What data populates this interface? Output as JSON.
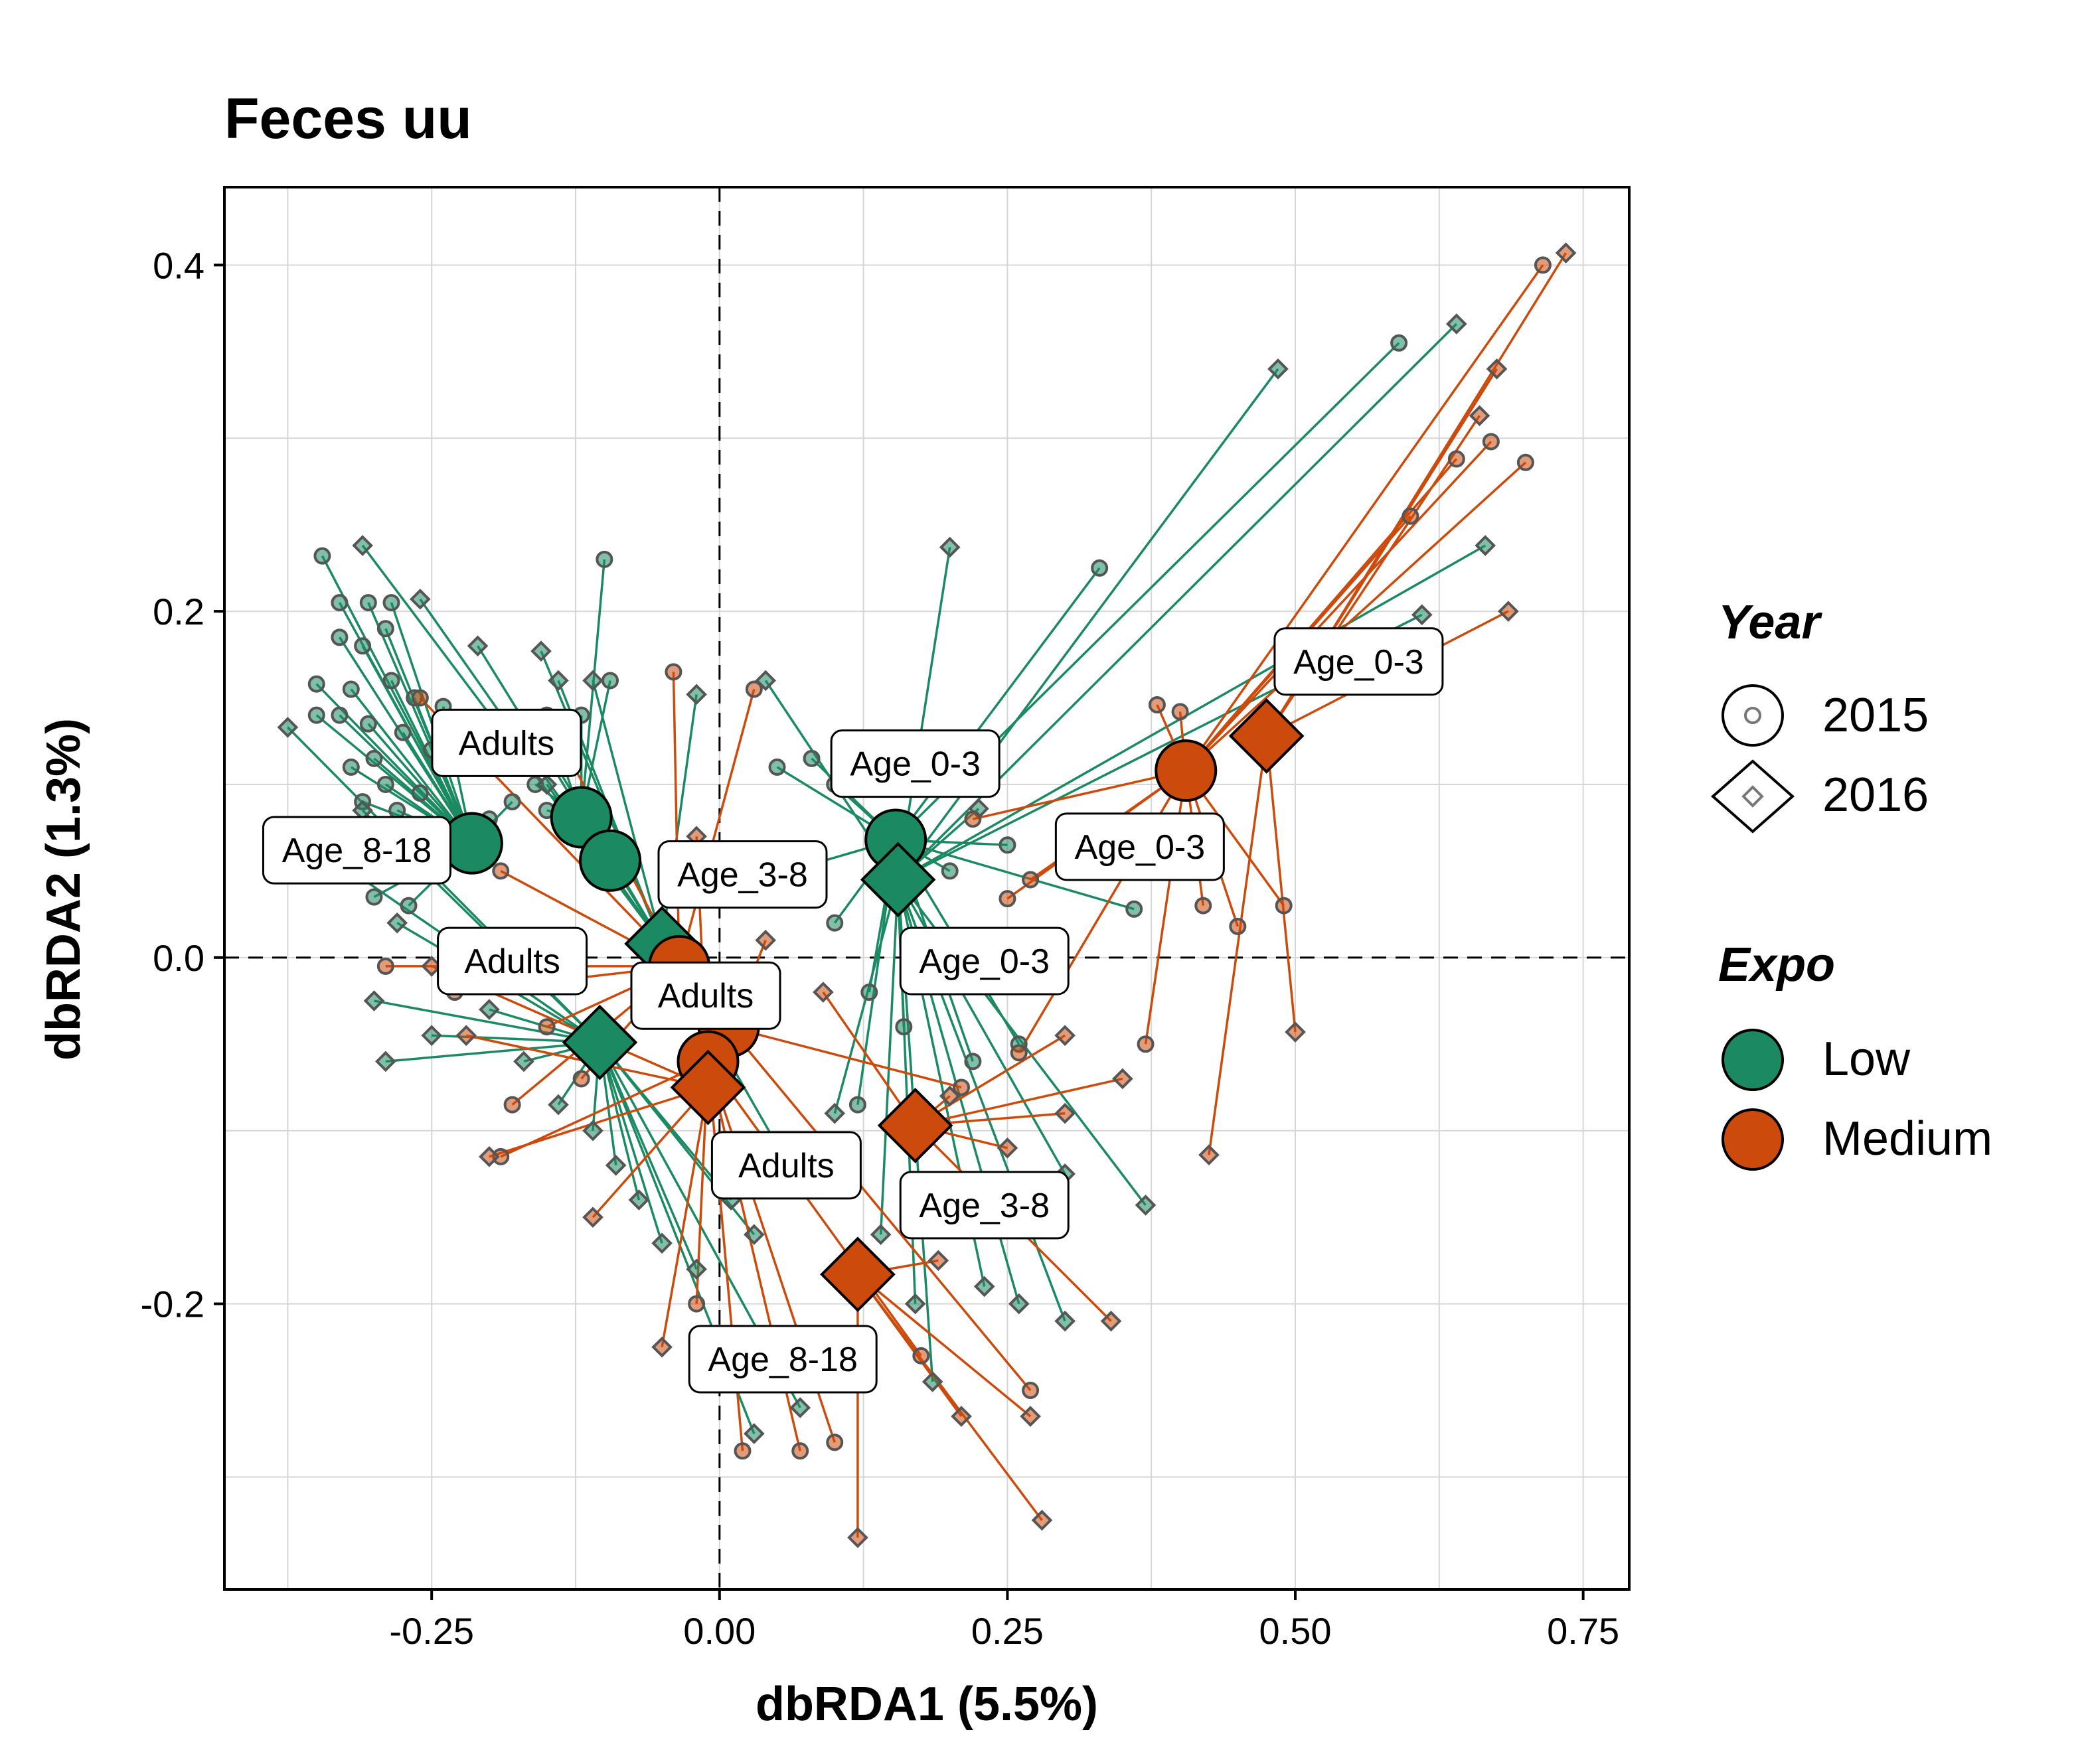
{
  "chart_data": {
    "type": "scatter",
    "title": "Feces uu",
    "xlabel": "dbRDA1 (5.5%)",
    "ylabel": "dbRDA2 (1.3%)",
    "xlim": [
      -0.43,
      0.79
    ],
    "ylim": [
      -0.365,
      0.445
    ],
    "x_ticks": [
      -0.25,
      0.0,
      0.25,
      0.5,
      0.75
    ],
    "x_tick_labels": [
      "-0.25",
      "0.00",
      "0.25",
      "0.50",
      "0.75"
    ],
    "y_ticks": [
      -0.2,
      0.0,
      0.2,
      0.4
    ],
    "y_tick_labels": [
      "-0.2",
      "0.0",
      "0.2",
      "0.4"
    ],
    "grid": true,
    "reference_lines": {
      "x": 0,
      "y": 0
    },
    "colors": {
      "Low": "#1b8a63",
      "Medium": "#cc4b0c"
    },
    "legend": {
      "placement": "right",
      "year_title": "Year",
      "year_items": [
        {
          "label": "2015",
          "shape": "circle"
        },
        {
          "label": "2016",
          "shape": "diamond"
        }
      ],
      "expo_title": "Expo",
      "expo_items": [
        {
          "label": "Low"
        },
        {
          "label": "Medium"
        }
      ]
    },
    "centroids": [
      {
        "group": "Age_8-18",
        "year": "2015",
        "expo": "Low",
        "x": -0.215,
        "y": 0.066
      },
      {
        "group": "Adults",
        "year": "2015",
        "expo": "Low",
        "x": -0.12,
        "y": 0.081
      },
      {
        "group": "Adults",
        "year": "2015",
        "expo": "Low",
        "x": -0.095,
        "y": 0.056
      },
      {
        "group": "Age_0-3",
        "year": "2015",
        "expo": "Low",
        "x": 0.153,
        "y": 0.068
      },
      {
        "group": "Age_0-3",
        "year": "2016",
        "expo": "Low",
        "x": 0.155,
        "y": 0.045
      },
      {
        "group": "Age_3-8",
        "year": "2016",
        "expo": "Low",
        "x": -0.05,
        "y": 0.008
      },
      {
        "group": "Adults",
        "year": "2016",
        "expo": "Low",
        "x": -0.104,
        "y": -0.049
      },
      {
        "group": "Age_0-3",
        "year": "2015",
        "expo": "Medium",
        "x": 0.405,
        "y": 0.108
      },
      {
        "group": "Age_0-3",
        "year": "2016",
        "expo": "Medium",
        "x": 0.475,
        "y": 0.128
      },
      {
        "group": "Age_3-8",
        "year": "2015",
        "expo": "Medium",
        "x": -0.035,
        "y": -0.005
      },
      {
        "group": "Adults",
        "year": "2015",
        "expo": "Medium",
        "x": 0.008,
        "y": -0.04
      },
      {
        "group": "Adults",
        "year": "2015",
        "expo": "Medium",
        "x": -0.01,
        "y": -0.06
      },
      {
        "group": "Adults",
        "year": "2016",
        "expo": "Medium",
        "x": -0.01,
        "y": -0.075
      },
      {
        "group": "Age_3-8",
        "year": "2016",
        "expo": "Medium",
        "x": 0.17,
        "y": -0.097
      },
      {
        "group": "Age_8-18",
        "year": "2016",
        "expo": "Medium",
        "x": 0.12,
        "y": -0.183
      }
    ],
    "labels": [
      {
        "text": "Adults",
        "x": -0.185,
        "y": 0.124
      },
      {
        "text": "Age_8-18",
        "x": -0.315,
        "y": 0.062
      },
      {
        "text": "Age_0-3",
        "x": 0.17,
        "y": 0.112
      },
      {
        "text": "Age_3-8",
        "x": 0.02,
        "y": 0.048
      },
      {
        "text": "Age_0-3",
        "x": 0.555,
        "y": 0.171
      },
      {
        "text": "Age_0-3",
        "x": 0.365,
        "y": 0.064
      },
      {
        "text": "Adults",
        "x": -0.18,
        "y": -0.002
      },
      {
        "text": "Age_0-3",
        "x": 0.23,
        "y": -0.002
      },
      {
        "text": "Adults",
        "x": -0.012,
        "y": -0.022
      },
      {
        "text": "Adults",
        "x": 0.058,
        "y": -0.12
      },
      {
        "text": "Age_3-8",
        "x": 0.23,
        "y": -0.143
      },
      {
        "text": "Age_8-18",
        "x": 0.055,
        "y": -0.232
      }
    ],
    "samples": {
      "Low": [
        {
          "x": -0.345,
          "y": 0.232,
          "c": 1
        },
        {
          "x": -0.33,
          "y": 0.205,
          "c": 1
        },
        {
          "x": -0.305,
          "y": 0.205,
          "c": 1
        },
        {
          "x": -0.285,
          "y": 0.205,
          "c": 1
        },
        {
          "x": -0.33,
          "y": 0.185,
          "c": 1
        },
        {
          "x": -0.31,
          "y": 0.18,
          "c": 1
        },
        {
          "x": -0.29,
          "y": 0.19,
          "c": 1
        },
        {
          "x": -0.35,
          "y": 0.158,
          "c": 1
        },
        {
          "x": -0.32,
          "y": 0.155,
          "c": 1
        },
        {
          "x": -0.285,
          "y": 0.16,
          "c": 1
        },
        {
          "x": -0.265,
          "y": 0.15,
          "c": 1
        },
        {
          "x": -0.24,
          "y": 0.145,
          "c": 1
        },
        {
          "x": -0.35,
          "y": 0.14,
          "c": 1
        },
        {
          "x": -0.33,
          "y": 0.14,
          "c": 1
        },
        {
          "x": -0.305,
          "y": 0.135,
          "c": 1
        },
        {
          "x": -0.275,
          "y": 0.13,
          "c": 1
        },
        {
          "x": -0.25,
          "y": 0.12,
          "c": 1
        },
        {
          "x": -0.3,
          "y": 0.115,
          "c": 1
        },
        {
          "x": -0.32,
          "y": 0.11,
          "c": 1
        },
        {
          "x": -0.29,
          "y": 0.1,
          "c": 1
        },
        {
          "x": -0.26,
          "y": 0.095,
          "c": 1
        },
        {
          "x": -0.31,
          "y": 0.09,
          "c": 1
        },
        {
          "x": -0.28,
          "y": 0.085,
          "c": 1
        },
        {
          "x": -0.3,
          "y": 0.075,
          "c": 1
        },
        {
          "x": -0.27,
          "y": 0.07,
          "c": 1
        },
        {
          "x": -0.29,
          "y": 0.055,
          "c": 1
        },
        {
          "x": -0.25,
          "y": 0.05,
          "c": 1
        },
        {
          "x": -0.3,
          "y": 0.035,
          "c": 1
        },
        {
          "x": -0.27,
          "y": 0.03,
          "c": 1
        },
        {
          "x": -0.1,
          "y": 0.23,
          "c": 1
        },
        {
          "x": -0.095,
          "y": 0.16,
          "c": 1
        },
        {
          "x": -0.12,
          "y": 0.14,
          "c": 1
        },
        {
          "x": -0.14,
          "y": 0.12,
          "c": 1
        },
        {
          "x": -0.16,
          "y": 0.1,
          "c": 1
        },
        {
          "x": -0.18,
          "y": 0.09,
          "c": 1
        },
        {
          "x": -0.2,
          "y": 0.08,
          "c": 1
        },
        {
          "x": -0.15,
          "y": 0.085,
          "c": 1
        },
        {
          "x": 0.59,
          "y": 0.355,
          "c": 1
        },
        {
          "x": 0.33,
          "y": 0.225,
          "c": 1
        },
        {
          "x": 0.08,
          "y": 0.115,
          "c": 1
        },
        {
          "x": 0.05,
          "y": 0.11,
          "c": 1
        },
        {
          "x": 0.1,
          "y": 0.1,
          "c": 1
        },
        {
          "x": 0.06,
          "y": 0.05,
          "c": 1
        },
        {
          "x": 0.2,
          "y": 0.05,
          "c": 1
        },
        {
          "x": 0.25,
          "y": 0.065,
          "c": 1
        },
        {
          "x": 0.1,
          "y": 0.02,
          "c": 1
        },
        {
          "x": 0.13,
          "y": -0.02,
          "c": 1
        },
        {
          "x": 0.16,
          "y": -0.04,
          "c": 1
        },
        {
          "x": 0.36,
          "y": 0.028,
          "c": 1
        },
        {
          "x": 0.22,
          "y": -0.06,
          "c": 1
        },
        {
          "x": 0.12,
          "y": -0.085,
          "c": 1
        },
        {
          "x": 0.26,
          "y": -0.05,
          "c": 1
        }
      ],
      "Low2016": [
        {
          "x": -0.31,
          "y": 0.238,
          "c": 0
        },
        {
          "x": -0.26,
          "y": 0.207,
          "c": 0
        },
        {
          "x": -0.375,
          "y": 0.133,
          "c": 0
        },
        {
          "x": -0.21,
          "y": 0.18,
          "c": 0
        },
        {
          "x": -0.155,
          "y": 0.177,
          "c": 0
        },
        {
          "x": -0.31,
          "y": 0.085,
          "c": 0
        },
        {
          "x": -0.32,
          "y": 0.05,
          "c": 0
        },
        {
          "x": -0.28,
          "y": 0.02,
          "c": 0
        },
        {
          "x": -0.3,
          "y": -0.025,
          "c": 0
        },
        {
          "x": -0.29,
          "y": -0.06,
          "c": 0
        },
        {
          "x": -0.25,
          "y": -0.045,
          "c": 0
        },
        {
          "x": -0.2,
          "y": -0.03,
          "c": 0
        },
        {
          "x": -0.17,
          "y": -0.06,
          "c": 0
        },
        {
          "x": -0.14,
          "y": -0.085,
          "c": 0
        },
        {
          "x": -0.11,
          "y": -0.1,
          "c": 0
        },
        {
          "x": -0.09,
          "y": -0.12,
          "c": 0
        },
        {
          "x": -0.07,
          "y": -0.14,
          "c": 0
        },
        {
          "x": -0.05,
          "y": -0.165,
          "c": 0
        },
        {
          "x": -0.02,
          "y": -0.18,
          "c": 0
        },
        {
          "x": 0.01,
          "y": -0.14,
          "c": 0
        },
        {
          "x": 0.03,
          "y": -0.16,
          "c": 0
        },
        {
          "x": 0.06,
          "y": -0.12,
          "c": 0
        },
        {
          "x": 0.1,
          "y": -0.09,
          "c": 0
        },
        {
          "x": 0.14,
          "y": -0.16,
          "c": 0
        },
        {
          "x": 0.17,
          "y": -0.2,
          "c": 0
        },
        {
          "x": 0.185,
          "y": -0.245,
          "c": 0
        },
        {
          "x": 0.23,
          "y": -0.19,
          "c": 0
        },
        {
          "x": 0.26,
          "y": -0.2,
          "c": 0
        },
        {
          "x": 0.3,
          "y": -0.21,
          "c": 0
        },
        {
          "x": 0.37,
          "y": -0.143,
          "c": 0
        },
        {
          "x": 0.3,
          "y": -0.125,
          "c": 0
        },
        {
          "x": 0.225,
          "y": 0.086,
          "c": 0
        },
        {
          "x": 0.61,
          "y": 0.198,
          "c": 0
        },
        {
          "x": 0.665,
          "y": 0.238,
          "c": 0
        },
        {
          "x": 0.64,
          "y": 0.366,
          "c": 0
        },
        {
          "x": 0.485,
          "y": 0.34,
          "c": 0
        },
        {
          "x": 0.2,
          "y": 0.237,
          "c": 0
        },
        {
          "x": 0.04,
          "y": 0.16,
          "c": 0
        },
        {
          "x": -0.02,
          "y": 0.152,
          "c": 0
        },
        {
          "x": -0.15,
          "y": 0.1,
          "c": 0
        },
        {
          "x": -0.14,
          "y": 0.16,
          "c": 0
        },
        {
          "x": -0.11,
          "y": 0.16,
          "c": 0
        },
        {
          "x": -0.15,
          "y": 0.12,
          "c": 0
        },
        {
          "x": 0.07,
          "y": -0.26,
          "c": 0
        },
        {
          "x": 0.03,
          "y": -0.275,
          "c": 0
        }
      ],
      "Medium": [
        {
          "x": 0.715,
          "y": 0.4,
          "c": 1
        },
        {
          "x": 0.7,
          "y": 0.286,
          "c": 1
        },
        {
          "x": 0.67,
          "y": 0.298,
          "c": 1
        },
        {
          "x": 0.64,
          "y": 0.288,
          "c": 1
        },
        {
          "x": 0.6,
          "y": 0.255,
          "c": 1
        },
        {
          "x": 0.38,
          "y": 0.146,
          "c": 1
        },
        {
          "x": 0.4,
          "y": 0.142,
          "c": 1
        },
        {
          "x": 0.49,
          "y": 0.03,
          "c": 1
        },
        {
          "x": 0.42,
          "y": 0.03,
          "c": 1
        },
        {
          "x": 0.45,
          "y": 0.018,
          "c": 1
        },
        {
          "x": 0.37,
          "y": -0.05,
          "c": 1
        },
        {
          "x": 0.27,
          "y": 0.045,
          "c": 1
        },
        {
          "x": 0.25,
          "y": 0.034,
          "c": 1
        },
        {
          "x": 0.22,
          "y": 0.08,
          "c": 1
        },
        {
          "x": -0.04,
          "y": 0.165,
          "c": 1
        },
        {
          "x": 0.03,
          "y": 0.155,
          "c": 1
        },
        {
          "x": -0.15,
          "y": 0.14,
          "c": 1
        },
        {
          "x": -0.26,
          "y": 0.15,
          "c": 1
        },
        {
          "x": -0.19,
          "y": 0.05,
          "c": 1
        },
        {
          "x": -0.29,
          "y": -0.005,
          "c": 1
        },
        {
          "x": -0.23,
          "y": -0.02,
          "c": 1
        },
        {
          "x": -0.15,
          "y": -0.04,
          "c": 1
        },
        {
          "x": -0.12,
          "y": -0.07,
          "c": 1
        },
        {
          "x": -0.18,
          "y": -0.085,
          "c": 1
        },
        {
          "x": -0.19,
          "y": -0.115,
          "c": 1
        },
        {
          "x": 0.07,
          "y": -0.285,
          "c": 1
        },
        {
          "x": 0.1,
          "y": -0.28,
          "c": 1
        },
        {
          "x": 0.02,
          "y": -0.285,
          "c": 1
        },
        {
          "x": -0.02,
          "y": -0.2,
          "c": 1
        },
        {
          "x": 0.27,
          "y": -0.25,
          "c": 1
        },
        {
          "x": 0.175,
          "y": -0.23,
          "c": 1
        },
        {
          "x": 0.26,
          "y": -0.055,
          "c": 1
        },
        {
          "x": 0.21,
          "y": -0.075,
          "c": 1
        }
      ],
      "Medium2016": [
        {
          "x": 0.735,
          "y": 0.407,
          "c": 0
        },
        {
          "x": 0.685,
          "y": 0.2,
          "c": 0
        },
        {
          "x": 0.675,
          "y": 0.34,
          "c": 0
        },
        {
          "x": 0.66,
          "y": 0.313,
          "c": 0
        },
        {
          "x": 0.5,
          "y": -0.043,
          "c": 0
        },
        {
          "x": 0.425,
          "y": -0.114,
          "c": 0
        },
        {
          "x": 0.34,
          "y": -0.21,
          "c": 0
        },
        {
          "x": 0.28,
          "y": -0.325,
          "c": 0
        },
        {
          "x": 0.27,
          "y": -0.265,
          "c": 0
        },
        {
          "x": 0.21,
          "y": -0.265,
          "c": 0
        },
        {
          "x": 0.12,
          "y": -0.335,
          "c": 0
        },
        {
          "x": 0.19,
          "y": -0.175,
          "c": 0
        },
        {
          "x": 0.2,
          "y": -0.08,
          "c": 0
        },
        {
          "x": 0.3,
          "y": -0.09,
          "c": 0
        },
        {
          "x": 0.35,
          "y": -0.07,
          "c": 0
        },
        {
          "x": 0.3,
          "y": -0.045,
          "c": 0
        },
        {
          "x": 0.25,
          "y": -0.11,
          "c": 0
        },
        {
          "x": -0.05,
          "y": -0.225,
          "c": 0
        },
        {
          "x": -0.11,
          "y": -0.15,
          "c": 0
        },
        {
          "x": -0.2,
          "y": -0.115,
          "c": 0
        },
        {
          "x": -0.25,
          "y": -0.005,
          "c": 0
        },
        {
          "x": -0.22,
          "y": -0.045,
          "c": 0
        },
        {
          "x": -0.02,
          "y": 0.07,
          "c": 0
        },
        {
          "x": 0.04,
          "y": 0.01,
          "c": 0
        },
        {
          "x": 0.09,
          "y": -0.02,
          "c": 0
        }
      ]
    }
  }
}
